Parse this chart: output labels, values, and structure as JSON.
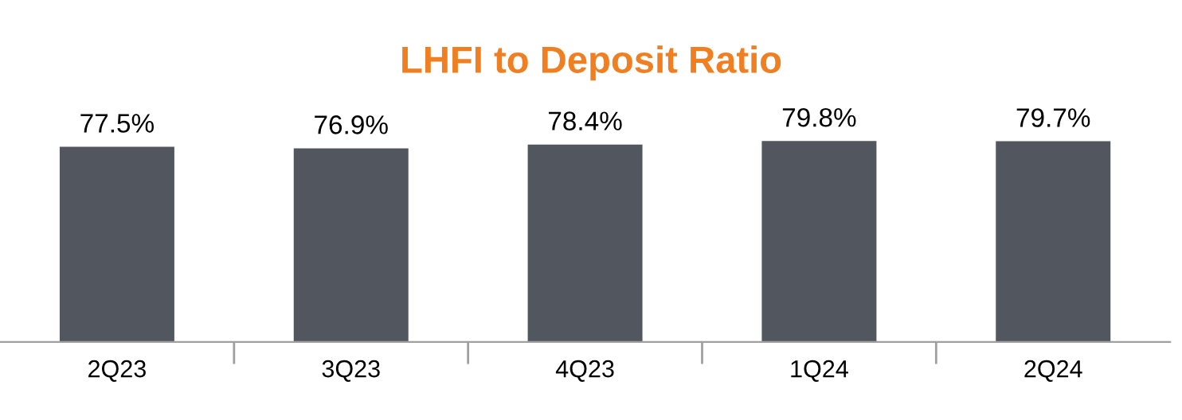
{
  "chart_data": {
    "type": "bar",
    "title": "LHFI to Deposit Ratio",
    "categories": [
      "2Q23",
      "3Q23",
      "4Q23",
      "1Q24",
      "2Q24"
    ],
    "values": [
      77.5,
      76.9,
      78.4,
      79.8,
      79.7
    ],
    "value_labels": [
      "77.5%",
      "76.9%",
      "78.4%",
      "79.8%",
      "79.7%"
    ],
    "color": "#52565e",
    "tick_labels": "x",
    "grid": false,
    "legend": false
  }
}
